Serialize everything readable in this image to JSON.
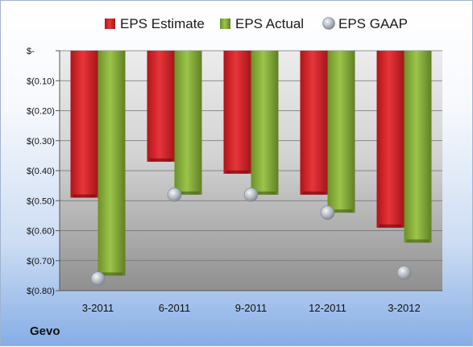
{
  "company": "Gevo",
  "chart_data": {
    "type": "bar",
    "categories": [
      "3-2011",
      "6-2011",
      "9-2011",
      "12-2011",
      "3-2012"
    ],
    "series": [
      {
        "name": "EPS Estimate",
        "kind": "bar",
        "color": "#d7262b",
        "values": [
          -0.49,
          -0.37,
          -0.41,
          -0.48,
          -0.59
        ]
      },
      {
        "name": "EPS Actual",
        "kind": "bar",
        "color": "#8ab23c",
        "values": [
          -0.75,
          -0.48,
          -0.48,
          -0.54,
          -0.64
        ]
      },
      {
        "name": "EPS GAAP",
        "kind": "marker",
        "color": "#b9bec6",
        "values": [
          -0.76,
          -0.48,
          -0.48,
          -0.54,
          -0.74
        ]
      }
    ],
    "ylim": [
      -0.8,
      0
    ],
    "yticks": [
      {
        "value": 0,
        "label": "$-"
      },
      {
        "value": -0.1,
        "label": "$(0.10)"
      },
      {
        "value": -0.2,
        "label": "$(0.20)"
      },
      {
        "value": -0.3,
        "label": "$(0.30)"
      },
      {
        "value": -0.4,
        "label": "$(0.40)"
      },
      {
        "value": -0.5,
        "label": "$(0.50)"
      },
      {
        "value": -0.6,
        "label": "$(0.60)"
      },
      {
        "value": -0.7,
        "label": "$(0.70)"
      },
      {
        "value": -0.8,
        "label": "$(0.80)"
      }
    ],
    "grid": true,
    "legend": "top"
  }
}
